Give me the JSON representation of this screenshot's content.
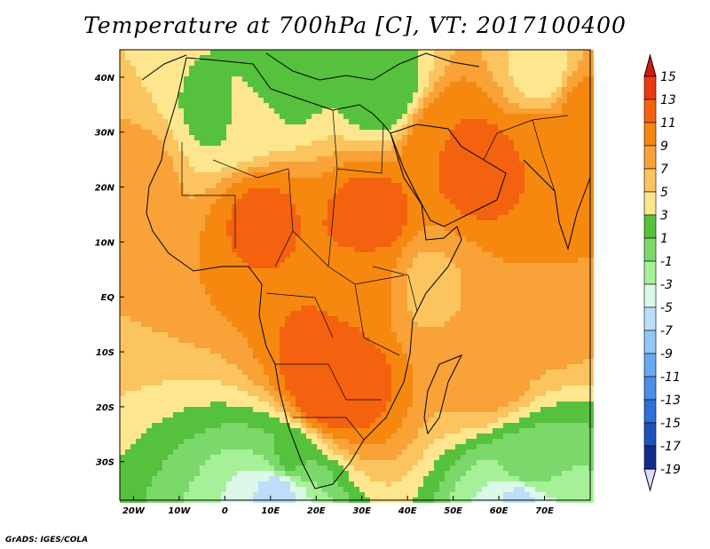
{
  "chart_data": {
    "type": "heatmap",
    "title": "Temperature at 700hPa [C], VT: 2017100400",
    "xlim": [
      -23,
      80
    ],
    "ylim": [
      -37,
      45
    ],
    "x_ticks": [
      -20,
      -10,
      0,
      10,
      20,
      30,
      40,
      50,
      60,
      70
    ],
    "x_tick_labels": [
      "20W",
      "10W",
      "0",
      "10E",
      "20E",
      "30E",
      "40E",
      "50E",
      "60E",
      "70E"
    ],
    "y_ticks": [
      40,
      30,
      20,
      10,
      0,
      -10,
      -20,
      -30
    ],
    "y_tick_labels": [
      "40N",
      "30N",
      "20N",
      "10N",
      "EQ",
      "10S",
      "20S",
      "30S"
    ],
    "colorbar": {
      "labels": [
        "15",
        "13",
        "11",
        "9",
        "7",
        "5",
        "3",
        "1",
        "-1",
        "-3",
        "-5",
        "-7",
        "-9",
        "-11",
        "-13",
        "-15",
        "-17",
        "-19"
      ],
      "levels": [
        15,
        13,
        11,
        9,
        7,
        5,
        3,
        1,
        -1,
        -3,
        -5,
        -7,
        -9,
        -11,
        -13,
        -15,
        -17,
        -19
      ],
      "colors": [
        "#f0380e",
        "#f5620f",
        "#f6880f",
        "#f8a238",
        "#fbc45f",
        "#fde68e",
        "#56c13c",
        "#7bd96b",
        "#a6f097",
        "#dbf8e9",
        "#bcdefa",
        "#94c8f4",
        "#6aa9ee",
        "#4a8ee5",
        "#2e6fd8",
        "#1e51bd",
        "#0f2d8c"
      ],
      "over_color": "#d7190f",
      "under_color": "#dcdcff"
    },
    "fields": [
      {
        "lon": 35,
        "lat": 38,
        "value": 1.5
      },
      {
        "lon": 12,
        "lat": 39,
        "value": 2.0
      },
      {
        "lon": -2,
        "lat": 33,
        "value": 2.5
      },
      {
        "lon": 5,
        "lat": 32,
        "value": 4.0
      },
      {
        "lon": 56,
        "lat": 24,
        "value": 12.0
      },
      {
        "lon": 48,
        "lat": 28,
        "value": 11.0
      },
      {
        "lon": 70,
        "lat": 28,
        "value": 11.0
      },
      {
        "lon": 32,
        "lat": 14,
        "value": 12.0
      },
      {
        "lon": 8,
        "lat": 15,
        "value": 11.5
      },
      {
        "lon": 25,
        "lat": -13,
        "value": 12.5
      },
      {
        "lon": 22,
        "lat": -17,
        "value": 13.0
      },
      {
        "lon": 14,
        "lat": -30,
        "value": 1.5
      },
      {
        "lon": 12,
        "lat": -35,
        "value": -6.0
      },
      {
        "lon": 66,
        "lat": -32,
        "value": 1.0
      },
      {
        "lon": 65,
        "lat": -36,
        "value": -6.0
      },
      {
        "lon": 44,
        "lat": 2,
        "value": 6.5
      },
      {
        "lon": 32,
        "lat": 2,
        "value": 9.5
      },
      {
        "lon": -18,
        "lat": 22,
        "value": 7.5
      },
      {
        "lon": 68,
        "lat": 0,
        "value": 9.0
      },
      {
        "lon": 58,
        "lat": -14,
        "value": 8.0
      },
      {
        "lon": 70,
        "lat": 40,
        "value": 4.0
      },
      {
        "lon": 78,
        "lat": 35,
        "value": 9.5
      }
    ]
  },
  "credit": "GrADS: IGES/COLA"
}
